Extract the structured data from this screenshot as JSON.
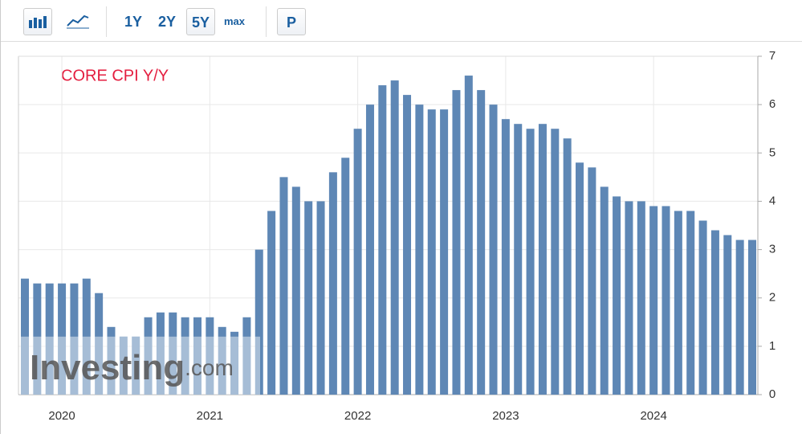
{
  "toolbar": {
    "ranges": [
      "1Y",
      "2Y",
      "5Y",
      "max"
    ],
    "extra": "P"
  },
  "watermark": [
    "Investing",
    ".com"
  ],
  "chart_data": {
    "type": "bar",
    "title": "CORE CPI Y/Y",
    "color": "#5e87b5",
    "categories": [
      null,
      null,
      null,
      "2020",
      null,
      null,
      null,
      null,
      null,
      null,
      null,
      null,
      null,
      null,
      null,
      "2021",
      null,
      null,
      null,
      null,
      null,
      null,
      null,
      null,
      null,
      null,
      null,
      "2022",
      null,
      null,
      null,
      null,
      null,
      null,
      null,
      null,
      null,
      null,
      null,
      "2023",
      null,
      null,
      null,
      null,
      null,
      null,
      null,
      null,
      null,
      null,
      null,
      "2024",
      null,
      null,
      null,
      null,
      null,
      null,
      null,
      null
    ],
    "values": [
      2.4,
      2.3,
      2.3,
      2.3,
      2.3,
      2.4,
      2.1,
      1.4,
      1.2,
      1.2,
      1.6,
      1.7,
      1.7,
      1.6,
      1.6,
      1.6,
      1.4,
      1.3,
      1.6,
      3.0,
      3.8,
      4.5,
      4.3,
      4.0,
      4.0,
      4.6,
      4.9,
      5.5,
      6.0,
      6.4,
      6.5,
      6.2,
      6.0,
      5.9,
      5.9,
      6.3,
      6.6,
      6.3,
      6.0,
      5.7,
      5.6,
      5.5,
      5.6,
      5.5,
      5.3,
      4.8,
      4.7,
      4.3,
      4.1,
      4.0,
      4.0,
      3.9,
      3.9,
      3.8,
      3.8,
      3.6,
      3.4,
      3.3,
      3.2,
      3.2
    ],
    "ylim": [
      0,
      7
    ],
    "yticks": [
      0,
      1,
      2,
      3,
      4,
      5,
      6,
      7
    ],
    "grid": true,
    "y_axis_side": "right"
  }
}
